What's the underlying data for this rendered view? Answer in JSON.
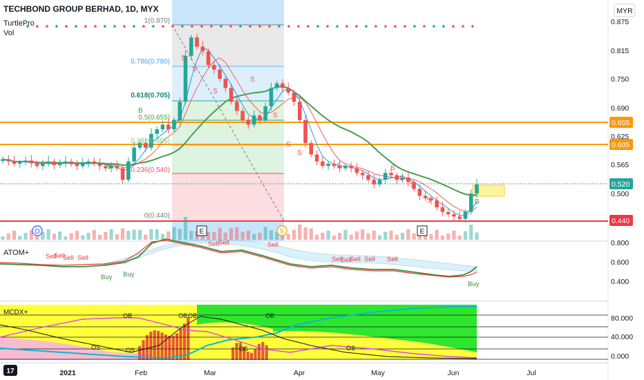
{
  "header": {
    "title": "TECHBOND GROUP BERHAD, 1D, MYX",
    "indicator_1": "TurtlePro",
    "indicator_2": "Vol",
    "currency": "MYR"
  },
  "colors": {
    "up": "#26a69a",
    "down": "#ef5350",
    "ma_red": "#f05a5a",
    "ma_blue": "#2196f3",
    "ma_green": "#43a047",
    "level_orange": "#ff9800",
    "level_red": "#f23645",
    "fib_blue_bg": "#bbdefb",
    "fib_gray_bg": "#e0e0e0",
    "fib_green_bg": "#c8e6c9",
    "fib_red_bg": "#ffcdd2",
    "yellow": "#ffff3b",
    "green": "#2ee62e",
    "cyan": "#00bcd4",
    "magenta": "#e040fb"
  },
  "chart_data": [
    {
      "type": "candlestick",
      "title": "TECHBOND GROUP BERHAD, 1D, MYX",
      "x_ticks": [
        "2021",
        "Feb",
        "Mar",
        "Apr",
        "May",
        "Jun",
        "Jul"
      ],
      "y_ticks": [
        0.875,
        0.815,
        0.75,
        0.69,
        0.625,
        0.565,
        0.5
      ],
      "ylim": [
        0.43,
        0.89
      ],
      "last_price": 0.52,
      "price_levels": [
        {
          "label": "0.655",
          "value": 0.655,
          "color": "#ff9800"
        },
        {
          "label": "0.605",
          "value": 0.605,
          "color": "#ff9800"
        },
        {
          "label": "0.520",
          "value": 0.52,
          "color": "#26a69a"
        },
        {
          "label": "0.440",
          "value": 0.44,
          "color": "#f23645"
        }
      ],
      "fib_levels": [
        {
          "label": "1(0.870)",
          "value": 0.87
        },
        {
          "label": "0.786(0.780)",
          "value": 0.78
        },
        {
          "label": "0.618(0.705)",
          "value": 0.705
        },
        {
          "label": "0.5(0.655)",
          "value": 0.655
        },
        {
          "label": "0.382(0.605)",
          "value": 0.605
        },
        {
          "label": "0.236(0.540)",
          "value": 0.54
        },
        {
          "label": "0(0.440)",
          "value": 0.44
        }
      ],
      "closes": [
        0.575,
        0.57,
        0.565,
        0.568,
        0.572,
        0.566,
        0.56,
        0.565,
        0.57,
        0.562,
        0.566,
        0.57,
        0.564,
        0.56,
        0.566,
        0.57,
        0.565,
        0.56,
        0.555,
        0.56,
        0.555,
        0.53,
        0.57,
        0.6,
        0.61,
        0.6,
        0.63,
        0.64,
        0.65,
        0.64,
        0.66,
        0.7,
        0.8,
        0.84,
        0.82,
        0.81,
        0.78,
        0.77,
        0.75,
        0.73,
        0.7,
        0.68,
        0.66,
        0.65,
        0.67,
        0.66,
        0.69,
        0.73,
        0.74,
        0.73,
        0.72,
        0.7,
        0.66,
        0.61,
        0.585,
        0.57,
        0.56,
        0.565,
        0.56,
        0.555,
        0.56,
        0.555,
        0.545,
        0.54,
        0.53,
        0.52,
        0.53,
        0.545,
        0.54,
        0.53,
        0.535,
        0.525,
        0.51,
        0.495,
        0.49,
        0.485,
        0.47,
        0.46,
        0.455,
        0.45,
        0.445,
        0.46,
        0.5,
        0.52
      ],
      "events": [
        {
          "label": "D",
          "date": "Jan"
        },
        {
          "label": "E",
          "date": "Feb-end"
        },
        {
          "label": "S",
          "date": "Mar-end"
        },
        {
          "label": "E",
          "date": "May-end"
        }
      ],
      "signal_labels": [
        "B",
        "B",
        "S",
        "S",
        "S",
        "S",
        "S",
        "S",
        "S",
        "S",
        "S",
        "S",
        "S",
        "S",
        "S",
        "B"
      ]
    },
    {
      "type": "line",
      "title": "ATOM+",
      "y_ticks": [
        0.8,
        0.6,
        0.4
      ],
      "ylim": [
        0.35,
        0.85
      ],
      "buy_labels": [
        "Buy",
        "Buy",
        "Buy"
      ],
      "sell_labels": [
        "Sell",
        "Sell",
        "Sell",
        "Sell",
        "Sell",
        "Sell",
        "Sell",
        "Sell",
        "Sell",
        "Sell",
        "Sell",
        "Sell"
      ]
    },
    {
      "type": "area",
      "title": "MCDX+",
      "y_ticks": [
        80.0,
        40.0,
        0.0
      ],
      "y_tick_labels": [
        "80.000",
        "40.000",
        "0.000"
      ],
      "ylim": [
        -5,
        100
      ],
      "markers": [
        "OB",
        "OB",
        "OB",
        "OB",
        "OS",
        "OS",
        "OS",
        "OS"
      ]
    }
  ],
  "axis_labels": {
    "main": [
      "0.875",
      "0.815",
      "0.750",
      "0.690",
      "0.625",
      "0.565",
      "0.500"
    ],
    "atom": [
      "0.800",
      "0.600",
      "0.400"
    ]
  },
  "logo": "17"
}
